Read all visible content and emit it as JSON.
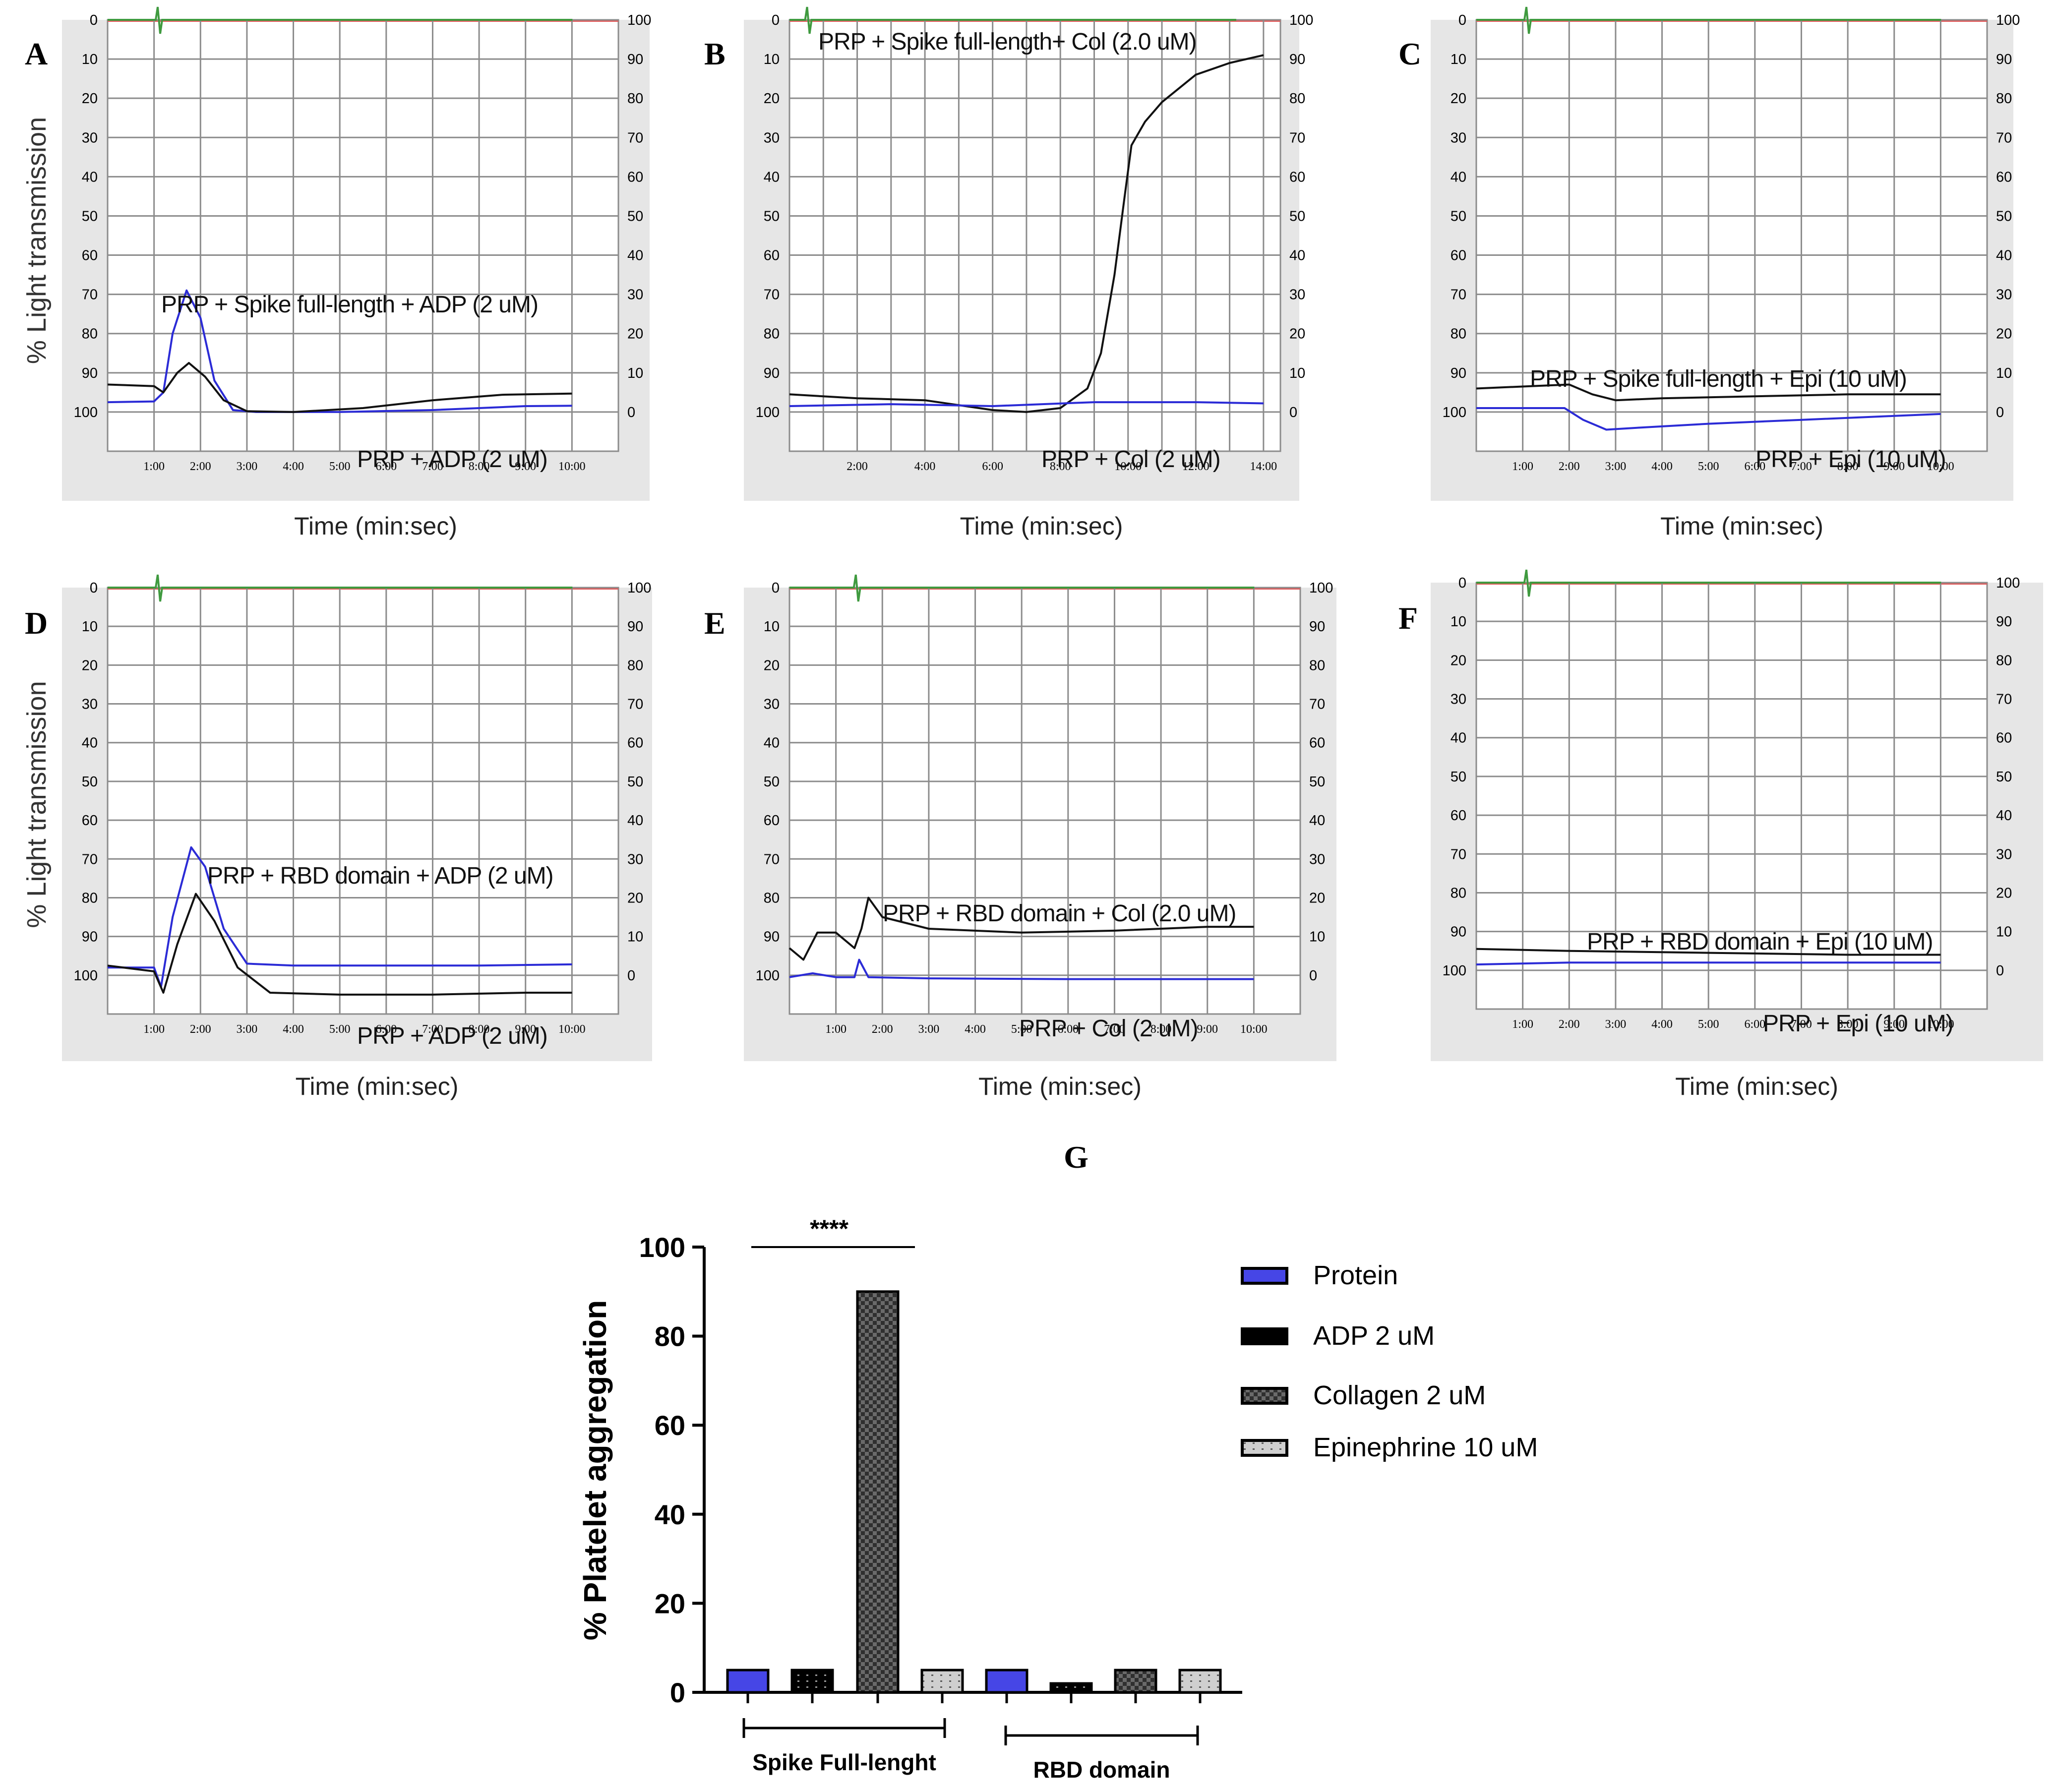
{
  "figure": {
    "panel_g_letter": "G"
  },
  "colors": {
    "blue_trace": "#2b2bd6",
    "black_trace": "#111111",
    "green_trace": "#3f9a3f",
    "red_top": "#e05a5a",
    "panel_bg": "#e6e6e6",
    "grid": "#8c8c8c",
    "protein_bar": "#4646e6",
    "adp_bar": "#000000",
    "collagen_bar": "#333333",
    "epi_bar": "#cfcfcf"
  },
  "chart_data": [
    {
      "panel": "A",
      "type": "line",
      "xlabel": "Time (min:sec)",
      "ylabel": "% Light transmission",
      "x_ticks": [
        "1:00",
        "2:00",
        "3:00",
        "4:00",
        "5:00",
        "6:00",
        "7:00",
        "8:00",
        "9:00",
        "10:00"
      ],
      "y_left_ticks": [
        "0",
        "10",
        "20",
        "30",
        "40",
        "50",
        "60",
        "70",
        "80",
        "90",
        "100"
      ],
      "y_right_ticks": [
        "100",
        "90",
        "80",
        "70",
        "60",
        "50",
        "40",
        "30",
        "20",
        "10",
        "0"
      ],
      "annotations": [
        "PRP + Spike full-length + ADP (2 uM)",
        "PRP + ADP (2 uM)"
      ],
      "xlim": [
        0,
        11
      ],
      "ylim": [
        0,
        110
      ],
      "series": [
        {
          "name": "PRP + Spike full-length + ADP (2 uM)",
          "color": "blue",
          "points": [
            [
              0,
              97.5
            ],
            [
              1,
              97.3
            ],
            [
              1.2,
              95
            ],
            [
              1.4,
              80
            ],
            [
              1.7,
              69
            ],
            [
              2,
              76
            ],
            [
              2.3,
              92
            ],
            [
              2.7,
              99.5
            ],
            [
              3.2,
              100
            ],
            [
              5,
              100
            ],
            [
              7,
              99.5
            ],
            [
              9,
              98.5
            ],
            [
              10,
              98.4
            ]
          ]
        },
        {
          "name": "PRP + ADP (2 uM)",
          "color": "black",
          "points": [
            [
              0,
              93
            ],
            [
              1,
              93.4
            ],
            [
              1.2,
              95
            ],
            [
              1.5,
              90
            ],
            [
              1.75,
              87.5
            ],
            [
              2.1,
              91
            ],
            [
              2.5,
              97
            ],
            [
              3,
              99.8
            ],
            [
              4,
              100
            ],
            [
              5.5,
              99
            ],
            [
              7,
              97
            ],
            [
              8.5,
              95.6
            ],
            [
              10,
              95.3
            ]
          ]
        }
      ]
    },
    {
      "panel": "B",
      "type": "line",
      "xlabel": "Time (min:sec)",
      "x_ticks": [
        "2:00",
        "4:00",
        "6:00",
        "8:00",
        "10:00",
        "12:00",
        "14:00"
      ],
      "y_left_ticks": [
        "0",
        "10",
        "20",
        "30",
        "40",
        "50",
        "60",
        "70",
        "80",
        "90",
        "100"
      ],
      "y_right_ticks": [
        "100",
        "90",
        "80",
        "70",
        "60",
        "50",
        "40",
        "30",
        "20",
        "10",
        "0"
      ],
      "annotations": [
        "PRP + Spike full-length+ Col (2.0 uM)",
        "PRP + Col (2 uM)"
      ],
      "xlim": [
        0,
        14.5
      ],
      "ylim": [
        0,
        110
      ],
      "series": [
        {
          "name": "PRP + Spike full-length+ Col (2.0 uM)",
          "color": "black",
          "points": [
            [
              0,
              95.5
            ],
            [
              2,
              96.5
            ],
            [
              4,
              97
            ],
            [
              6,
              99.5
            ],
            [
              7,
              100
            ],
            [
              8,
              99
            ],
            [
              8.8,
              94
            ],
            [
              9.2,
              85
            ],
            [
              9.6,
              65
            ],
            [
              9.9,
              45
            ],
            [
              10.1,
              32
            ],
            [
              10.5,
              26
            ],
            [
              11,
              21
            ],
            [
              12,
              14
            ],
            [
              13,
              11
            ],
            [
              14,
              9
            ]
          ]
        },
        {
          "name": "PRP + Col (2 uM)",
          "color": "blue",
          "points": [
            [
              0,
              98.5
            ],
            [
              3,
              98
            ],
            [
              6,
              98.5
            ],
            [
              9,
              97.5
            ],
            [
              12,
              97.5
            ],
            [
              14,
              97.8
            ]
          ]
        }
      ]
    },
    {
      "panel": "C",
      "type": "line",
      "xlabel": "Time (min:sec)",
      "x_ticks": [
        "1:00",
        "2:00",
        "3:00",
        "4:00",
        "5:00",
        "6:00",
        "7:00",
        "8:00",
        "9:00",
        "10:00"
      ],
      "y_left_ticks": [
        "0",
        "10",
        "20",
        "30",
        "40",
        "50",
        "60",
        "70",
        "80",
        "90",
        "100"
      ],
      "y_right_ticks": [
        "100",
        "90",
        "80",
        "70",
        "60",
        "50",
        "40",
        "30",
        "20",
        "10",
        "0"
      ],
      "annotations": [
        "PRP + Spike full-length + Epi (10 uM)",
        "PRP + Epi (10 uM)"
      ],
      "xlim": [
        0,
        11
      ],
      "ylim": [
        0,
        110
      ],
      "series": [
        {
          "name": "PRP + Spike full-length + Epi (10 uM)",
          "color": "black",
          "points": [
            [
              0,
              94
            ],
            [
              1,
              93.5
            ],
            [
              2,
              93
            ],
            [
              2.5,
              95.5
            ],
            [
              3,
              97
            ],
            [
              4,
              96.5
            ],
            [
              6,
              96
            ],
            [
              8,
              95.5
            ],
            [
              10,
              95.5
            ]
          ]
        },
        {
          "name": "PRP + Epi (10 uM)",
          "color": "blue",
          "points": [
            [
              0,
              99
            ],
            [
              1,
              99
            ],
            [
              1.9,
              99
            ],
            [
              2.3,
              102
            ],
            [
              2.8,
              104.5
            ],
            [
              3.5,
              104
            ],
            [
              5,
              103
            ],
            [
              7,
              102
            ],
            [
              9,
              101
            ],
            [
              10,
              100.5
            ]
          ]
        }
      ]
    },
    {
      "panel": "D",
      "type": "line",
      "xlabel": "Time (min:sec)",
      "ylabel": "% Light transmission",
      "x_ticks": [
        "1:00",
        "2:00",
        "3:00",
        "4:00",
        "5:00",
        "6:00",
        "7:00",
        "8:00",
        "9:00",
        "10:00"
      ],
      "y_left_ticks": [
        "0",
        "10",
        "20",
        "30",
        "40",
        "50",
        "60",
        "70",
        "80",
        "90",
        "100"
      ],
      "y_right_ticks": [
        "100",
        "90",
        "80",
        "70",
        "60",
        "50",
        "40",
        "30",
        "20",
        "10",
        "0"
      ],
      "annotations": [
        "PRP + RBD domain + ADP (2 uM)",
        "PRP + ADP (2 uM)"
      ],
      "xlim": [
        0,
        11
      ],
      "ylim": [
        0,
        110
      ],
      "series": [
        {
          "name": "PRP + RBD domain + ADP (2 uM)",
          "color": "blue",
          "points": [
            [
              0,
              98
            ],
            [
              1,
              98
            ],
            [
              1.15,
              103
            ],
            [
              1.4,
              85
            ],
            [
              1.8,
              67
            ],
            [
              2.1,
              72
            ],
            [
              2.5,
              88
            ],
            [
              3,
              97
            ],
            [
              4,
              97.5
            ],
            [
              6,
              97.5
            ],
            [
              8,
              97.5
            ],
            [
              10,
              97.2
            ]
          ]
        },
        {
          "name": "PRP + ADP (2 uM)",
          "color": "black",
          "points": [
            [
              0,
              97.5
            ],
            [
              1,
              99
            ],
            [
              1.2,
              104.5
            ],
            [
              1.5,
              92
            ],
            [
              1.9,
              79
            ],
            [
              2.3,
              86
            ],
            [
              2.8,
              98
            ],
            [
              3.5,
              104.5
            ],
            [
              5,
              105
            ],
            [
              7,
              105
            ],
            [
              9,
              104.5
            ],
            [
              10,
              104.5
            ]
          ]
        }
      ]
    },
    {
      "panel": "E",
      "type": "line",
      "xlabel": "Time (min:sec)",
      "x_ticks": [
        "1:00",
        "2:00",
        "3:00",
        "4:00",
        "5:00",
        "6:00",
        "7:00",
        "8:00",
        "9:00",
        "10:00"
      ],
      "y_left_ticks": [
        "0",
        "10",
        "20",
        "30",
        "40",
        "50",
        "60",
        "70",
        "80",
        "90",
        "100"
      ],
      "y_right_ticks": [
        "100",
        "90",
        "80",
        "70",
        "60",
        "50",
        "40",
        "30",
        "20",
        "10",
        "0"
      ],
      "annotations": [
        "PRP + RBD domain + Col (2.0 uM)",
        "PRP + Col (2 uM)"
      ],
      "xlim": [
        0,
        11
      ],
      "ylim": [
        0,
        110
      ],
      "series": [
        {
          "name": "PRP + RBD domain + Col (2.0 uM)",
          "color": "black",
          "points": [
            [
              0,
              93
            ],
            [
              0.3,
              96
            ],
            [
              0.6,
              89
            ],
            [
              1,
              89
            ],
            [
              1.4,
              93
            ],
            [
              1.55,
              88
            ],
            [
              1.7,
              80
            ],
            [
              2,
              85
            ],
            [
              3,
              88
            ],
            [
              5,
              89
            ],
            [
              7,
              88.5
            ],
            [
              9,
              87.5
            ],
            [
              10,
              87.5
            ]
          ]
        },
        {
          "name": "PRP + Col (2 uM)",
          "color": "blue",
          "points": [
            [
              0,
              100.5
            ],
            [
              0.5,
              99.5
            ],
            [
              1,
              100.5
            ],
            [
              1.4,
              100.5
            ],
            [
              1.5,
              96
            ],
            [
              1.7,
              100.5
            ],
            [
              3,
              100.8
            ],
            [
              6,
              101
            ],
            [
              10,
              101
            ]
          ]
        }
      ]
    },
    {
      "panel": "F",
      "type": "line",
      "xlabel": "Time (min:sec)",
      "x_ticks": [
        "1:00",
        "2:00",
        "3:00",
        "4:00",
        "5:00",
        "6:00",
        "7:00",
        "8:00",
        "9:00",
        "10:00"
      ],
      "y_left_ticks": [
        "0",
        "10",
        "20",
        "30",
        "40",
        "50",
        "60",
        "70",
        "80",
        "90",
        "100"
      ],
      "y_right_ticks": [
        "100",
        "90",
        "80",
        "70",
        "60",
        "50",
        "40",
        "30",
        "20",
        "10",
        "0"
      ],
      "annotations": [
        "PRP + RBD domain + Epi (10 uM)",
        "PRP + Epi (10 uM)"
      ],
      "xlim": [
        0,
        11
      ],
      "ylim": [
        0,
        110
      ],
      "series": [
        {
          "name": "PRP + RBD domain + Epi (10 uM)",
          "color": "black",
          "points": [
            [
              0,
              94.5
            ],
            [
              2,
              95
            ],
            [
              5,
              95.5
            ],
            [
              8,
              96
            ],
            [
              10,
              96
            ]
          ]
        },
        {
          "name": "PRP + Epi (10 uM)",
          "color": "blue",
          "points": [
            [
              0,
              98.5
            ],
            [
              2,
              98
            ],
            [
              5,
              98
            ],
            [
              8,
              98
            ],
            [
              10,
              98
            ]
          ]
        }
      ]
    },
    {
      "panel": "G",
      "type": "bar",
      "title": "",
      "ylabel": "% Platelet aggregation",
      "ylim": [
        0,
        100
      ],
      "y_ticks": [
        "0",
        "20",
        "40",
        "60",
        "80",
        "100"
      ],
      "groups": [
        "Spike Full-lenght",
        "RBD domain"
      ],
      "series": [
        {
          "name": "Protein",
          "values": [
            5,
            5
          ]
        },
        {
          "name": "ADP 2 uM",
          "values": [
            5,
            2
          ]
        },
        {
          "name": "Collagen 2 uM",
          "values": [
            90,
            5
          ]
        },
        {
          "name": "Epinephrine 10 uM",
          "values": [
            5,
            5
          ]
        }
      ],
      "significance": "****",
      "legend_position": "right"
    }
  ]
}
